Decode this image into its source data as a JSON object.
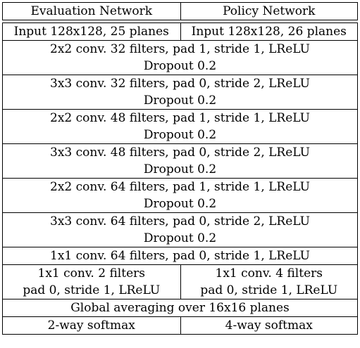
{
  "header": {
    "left": "Evaluation Network",
    "right": "Policy Network"
  },
  "input": {
    "left": "Input 128x128, 25 planes",
    "right": "Input 128x128, 26 planes"
  },
  "blocks": [
    {
      "conv": "2x2 conv. 32 filters, pad 1, stride 1, LReLU",
      "dropout": "Dropout 0.2"
    },
    {
      "conv": "3x3 conv. 32 filters, pad 0, stride 2, LReLU",
      "dropout": "Dropout 0.2"
    },
    {
      "conv": "2x2 conv. 48 filters, pad 1, stride 1, LReLU",
      "dropout": "Dropout 0.2"
    },
    {
      "conv": "3x3 conv. 48 filters, pad 0, stride 2, LReLU",
      "dropout": "Dropout 0.2"
    },
    {
      "conv": "2x2 conv. 64 filters, pad 1, stride 1, LReLU",
      "dropout": "Dropout 0.2"
    },
    {
      "conv": "3x3 conv. 64 filters, pad 0, stride 2, LReLU",
      "dropout": "Dropout 0.2"
    }
  ],
  "conv1x1": "1x1 conv. 64 filters, pad 0, stride 1, LReLU",
  "split": {
    "left_line1": "1x1 conv. 2 filters",
    "left_line2": "pad 0, stride 1, LReLU",
    "right_line1": "1x1 conv. 4 filters",
    "right_line2": "pad 0, stride 1, LReLU"
  },
  "global_avg": "Global averaging over 16x16 planes",
  "softmax": {
    "left": "2-way softmax",
    "right": "4-way softmax"
  }
}
